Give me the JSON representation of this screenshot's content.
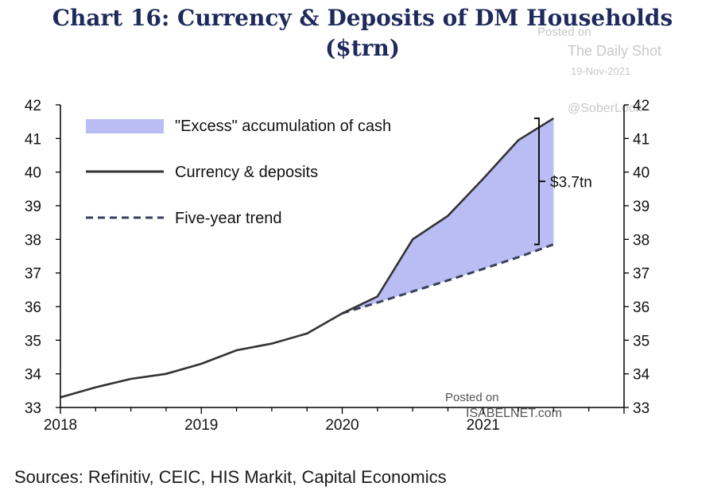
{
  "header": {
    "title_line1": "Chart 16: Currency & Deposits of DM Households",
    "title_line2": "($trn)"
  },
  "watermarks": {
    "posted_on_top": "Posted on",
    "daily_shot": "The Daily Shot",
    "date": "19-Nov-2021",
    "handle": "@SoberLook",
    "posted_on_bottom": "Posted on",
    "isabelnet": "ISABELNET.com"
  },
  "source": "Sources: Refinitiv, CEIC, HIS Markit, Capital Economics",
  "chart_data": {
    "type": "area",
    "title": "Chart 16: Currency & Deposits of DM Households ($trn)",
    "x_ticks": [
      "2018",
      "2019",
      "2020",
      "2021"
    ],
    "y_ticks": [
      33,
      34,
      35,
      36,
      37,
      38,
      39,
      40,
      41,
      42
    ],
    "ylim": [
      33,
      42
    ],
    "xlim": [
      2018.0,
      2022.0
    ],
    "legend": [
      {
        "label": "\"Excess\" accumulation of cash",
        "kind": "area",
        "color": "#b9bdf4"
      },
      {
        "label": "Currency & deposits",
        "kind": "line",
        "color": "#333333"
      },
      {
        "label": "Five-year trend",
        "kind": "dashed",
        "color": "#3a3f5c"
      }
    ],
    "legend_position": "top-left",
    "grid": false,
    "series": [
      {
        "name": "Currency & deposits",
        "x": [
          2018.0,
          2018.25,
          2018.5,
          2018.75,
          2019.0,
          2019.25,
          2019.5,
          2019.75,
          2020.0,
          2020.25,
          2020.5,
          2020.75,
          2021.0,
          2021.25,
          2021.5
        ],
        "values": [
          33.3,
          33.6,
          33.85,
          34.0,
          34.3,
          34.7,
          34.9,
          35.2,
          35.8,
          36.3,
          38.0,
          38.7,
          39.8,
          40.95,
          41.6
        ]
      },
      {
        "name": "Five-year trend",
        "x": [
          2020.0,
          2020.25,
          2020.5,
          2020.75,
          2021.0,
          2021.25,
          2021.5
        ],
        "values": [
          35.8,
          36.12,
          36.45,
          36.78,
          37.12,
          37.47,
          37.85
        ]
      }
    ],
    "annotation": "$3.7tn"
  }
}
